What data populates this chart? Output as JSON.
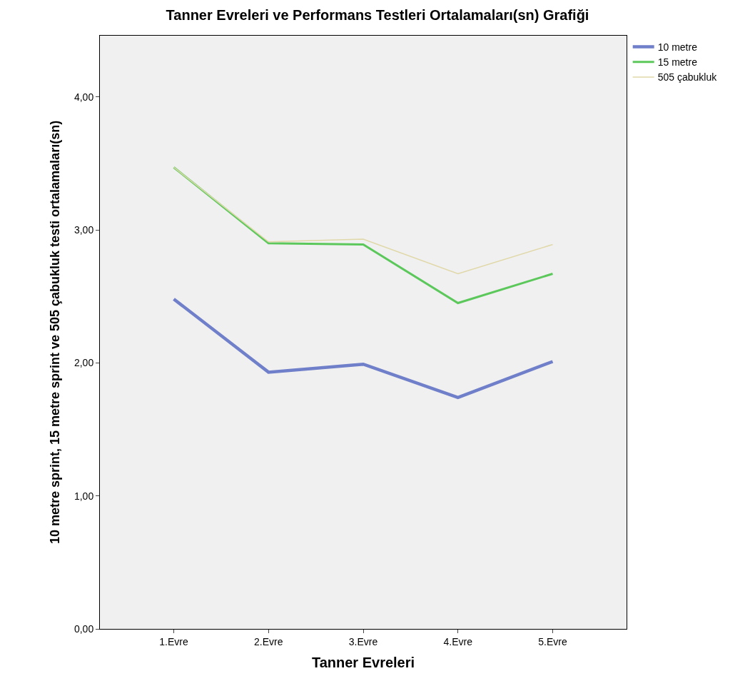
{
  "chart_data": {
    "type": "line",
    "title": "Tanner Evreleri ve Performans Testleri Ortalamaları(sn) Grafiği",
    "xlabel": "Tanner Evreleri",
    "ylabel": "10 metre sprint, 15 metre sprint ve 505 çabukluk testi ortalamaları(sn)",
    "categories": [
      "1.Evre",
      "2.Evre",
      "3.Evre",
      "4.Evre",
      "5.Evre"
    ],
    "series": [
      {
        "name": "10 metre",
        "color": "#6f7fc9",
        "values": [
          2.48,
          1.93,
          1.99,
          1.74,
          2.01
        ]
      },
      {
        "name": "15 metre",
        "color": "#5cc85c",
        "values": [
          3.47,
          2.9,
          2.89,
          2.45,
          2.67
        ]
      },
      {
        "name": "505 çabukluk",
        "color": "#e0d8a8",
        "values": [
          3.47,
          2.91,
          2.93,
          2.67,
          2.89
        ]
      }
    ],
    "ylim": [
      0,
      4.46
    ],
    "yticks": [
      {
        "value": 0,
        "label": "0,00"
      },
      {
        "value": 1,
        "label": "1,00"
      },
      {
        "value": 2,
        "label": "2,00"
      },
      {
        "value": 3,
        "label": "3,00"
      },
      {
        "value": 4,
        "label": "4,00"
      }
    ],
    "grid": false,
    "legend": "top right",
    "marker": "none",
    "line_style": "solid"
  }
}
